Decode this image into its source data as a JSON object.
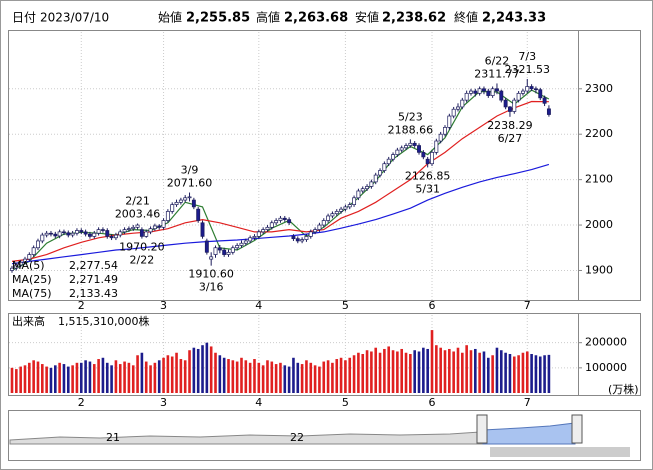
{
  "chart_data": {
    "type": "candlestick",
    "header": {
      "date_label": "日付",
      "date": "2023/07/10",
      "open_label": "始値",
      "open": {
        "value": 2255.85,
        "label": "2,255.85"
      },
      "high_label": "高値",
      "high": {
        "value": 2263.68,
        "label": "2,263.68"
      },
      "low_label": "安値",
      "low": {
        "value": 2238.62,
        "label": "2,238.62"
      },
      "close_label": "終値",
      "close": {
        "value": 2243.33,
        "label": "2,243.33"
      },
      "high_color": "#e00000",
      "low_color": "#008000"
    },
    "up_color": "#ffffff",
    "down_color": "#1c1c8c",
    "candles": [
      [
        1900,
        1910,
        1895,
        1905
      ],
      [
        1905,
        1917,
        1900,
        1912
      ],
      [
        1912,
        1923,
        1907,
        1918
      ],
      [
        1918,
        1930,
        1913,
        1925
      ],
      [
        1925,
        1940,
        1920,
        1935
      ],
      [
        1935,
        1955,
        1930,
        1950
      ],
      [
        1950,
        1970,
        1945,
        1965
      ],
      [
        1965,
        1983,
        1960,
        1978
      ],
      [
        1978,
        1987,
        1973,
        1982
      ],
      [
        1982,
        1987,
        1975,
        1980
      ],
      [
        1980,
        1985,
        1971,
        1976
      ],
      [
        1976,
        1990,
        1971,
        1985
      ],
      [
        1985,
        1990,
        1978,
        1983
      ],
      [
        1983,
        1988,
        1973,
        1978
      ],
      [
        1978,
        1987,
        1973,
        1982
      ],
      [
        1982,
        1993,
        1977,
        1988
      ],
      [
        1988,
        1993,
        1980,
        1985
      ],
      [
        1985,
        1990,
        1975,
        1980
      ],
      [
        1980,
        1985,
        1970,
        1975
      ],
      [
        1975,
        1987,
        1970,
        1982
      ],
      [
        1982,
        1995,
        1977,
        1990
      ],
      [
        1990,
        1995,
        1983,
        1988
      ],
      [
        1988,
        1993,
        1970,
        1975
      ],
      [
        1975,
        1980,
        1967,
        1972
      ],
      [
        1972,
        1983,
        1967,
        1978
      ],
      [
        1978,
        1990,
        1973,
        1985
      ],
      [
        1985,
        1995,
        1980,
        1990
      ],
      [
        1990,
        1997,
        1985,
        1992
      ],
      [
        1992,
        2000,
        1987,
        1995
      ],
      [
        1995,
        2003.46,
        1990,
        2000
      ],
      [
        1990,
        1995,
        1970.2,
        1975
      ],
      [
        1975,
        1990,
        1972,
        1985
      ],
      [
        1985,
        1997,
        1980,
        1992
      ],
      [
        1992,
        2003,
        1987,
        1998
      ],
      [
        1998,
        2002,
        1990,
        1995
      ],
      [
        1995,
        2015,
        1990,
        2010
      ],
      [
        2010,
        2035,
        2005,
        2030
      ],
      [
        2030,
        2050,
        2025,
        2045
      ],
      [
        2045,
        2056,
        2040,
        2050
      ],
      [
        2050,
        2060,
        2045,
        2055
      ],
      [
        2055,
        2066,
        2050,
        2060
      ],
      [
        2060,
        2071.6,
        2052,
        2062
      ],
      [
        2055,
        2060,
        2035,
        2040
      ],
      [
        2035,
        2040,
        2005,
        2010
      ],
      [
        2005,
        2010,
        1970,
        1975
      ],
      [
        1965,
        1970,
        1935,
        1940
      ],
      [
        1925,
        1940,
        1910.6,
        1930
      ],
      [
        1935,
        1955,
        1928,
        1950
      ],
      [
        1950,
        1956,
        1938,
        1945
      ],
      [
        1945,
        1950,
        1930,
        1935
      ],
      [
        1935,
        1946,
        1930,
        1940
      ],
      [
        1940,
        1955,
        1935,
        1950
      ],
      [
        1950,
        1960,
        1945,
        1955
      ],
      [
        1955,
        1966,
        1950,
        1960
      ],
      [
        1960,
        1970,
        1955,
        1965
      ],
      [
        1965,
        1977,
        1960,
        1972
      ],
      [
        1972,
        1980,
        1967,
        1975
      ],
      [
        1975,
        1990,
        1970,
        1985
      ],
      [
        1985,
        1995,
        1980,
        1990
      ],
      [
        1990,
        2000,
        1985,
        1995
      ],
      [
        1995,
        2010,
        1990,
        2005
      ],
      [
        2005,
        2015,
        2000,
        2010
      ],
      [
        2010,
        2020,
        2005,
        2015
      ],
      [
        2015,
        2020,
        2007,
        2012
      ],
      [
        2012,
        2017,
        2000,
        2005
      ],
      [
        1975,
        1980,
        1965,
        1970
      ],
      [
        1970,
        1975,
        1960,
        1965
      ],
      [
        1965,
        1973,
        1960,
        1968
      ],
      [
        1968,
        1980,
        1963,
        1975
      ],
      [
        1975,
        1990,
        1970,
        1985
      ],
      [
        1985,
        1995,
        1980,
        1990
      ],
      [
        1990,
        2005,
        1985,
        2000
      ],
      [
        2000,
        2015,
        1995,
        2010
      ],
      [
        2010,
        2025,
        2005,
        2020
      ],
      [
        2020,
        2030,
        2015,
        2025
      ],
      [
        2025,
        2035,
        2020,
        2030
      ],
      [
        2030,
        2040,
        2025,
        2035
      ],
      [
        2035,
        2045,
        2030,
        2040
      ],
      [
        2040,
        2050,
        2035,
        2045
      ],
      [
        2045,
        2065,
        2040,
        2060
      ],
      [
        2060,
        2080,
        2055,
        2075
      ],
      [
        2075,
        2085,
        2070,
        2080
      ],
      [
        2080,
        2090,
        2075,
        2085
      ],
      [
        2085,
        2100,
        2080,
        2095
      ],
      [
        2095,
        2115,
        2090,
        2110
      ],
      [
        2110,
        2125,
        2105,
        2120
      ],
      [
        2120,
        2140,
        2115,
        2135
      ],
      [
        2135,
        2150,
        2130,
        2145
      ],
      [
        2145,
        2160,
        2140,
        2155
      ],
      [
        2155,
        2170,
        2150,
        2165
      ],
      [
        2165,
        2175,
        2160,
        2170
      ],
      [
        2170,
        2180,
        2165,
        2175
      ],
      [
        2175,
        2188.66,
        2170,
        2180
      ],
      [
        2180,
        2185,
        2170,
        2175
      ],
      [
        2175,
        2180,
        2155,
        2160
      ],
      [
        2160,
        2165,
        2145,
        2150
      ],
      [
        2145,
        2150,
        2126.85,
        2135
      ],
      [
        2135,
        2165,
        2130,
        2160
      ],
      [
        2160,
        2190,
        2155,
        2185
      ],
      [
        2185,
        2205,
        2180,
        2200
      ],
      [
        2200,
        2220,
        2195,
        2215
      ],
      [
        2215,
        2245,
        2210,
        2240
      ],
      [
        2240,
        2260,
        2235,
        2255
      ],
      [
        2255,
        2268,
        2250,
        2260
      ],
      [
        2260,
        2280,
        2255,
        2275
      ],
      [
        2275,
        2296,
        2270,
        2290
      ],
      [
        2290,
        2300,
        2285,
        2295
      ],
      [
        2295,
        2300,
        2283,
        2290
      ],
      [
        2290,
        2305,
        2285,
        2300
      ],
      [
        2300,
        2305,
        2288,
        2295
      ],
      [
        2295,
        2300,
        2280,
        2285
      ],
      [
        2285,
        2305,
        2280,
        2300
      ],
      [
        2300,
        2311.77,
        2288,
        2295
      ],
      [
        2295,
        2298,
        2270,
        2275
      ],
      [
        2275,
        2280,
        2255,
        2260
      ],
      [
        2260,
        2262,
        2238.29,
        2250
      ],
      [
        2250,
        2280,
        2245,
        2275
      ],
      [
        2275,
        2295,
        2270,
        2290
      ],
      [
        2290,
        2300,
        2285,
        2295
      ],
      [
        2295,
        2321.53,
        2290,
        2305
      ],
      [
        2305,
        2310,
        2295,
        2300
      ],
      [
        2300,
        2305,
        2290,
        2298
      ],
      [
        2298,
        2302,
        2275,
        2280
      ],
      [
        2280,
        2285,
        2262,
        2268
      ],
      [
        2255.85,
        2263.68,
        2238.62,
        2243.33
      ]
    ],
    "months": [
      "2",
      "3",
      "4",
      "5",
      "6",
      "7"
    ],
    "month_starts": [
      16,
      35,
      57,
      77,
      97,
      119
    ],
    "ylim": [
      1835,
      2425
    ],
    "yticks": [
      1900,
      2000,
      2100,
      2200,
      2300
    ],
    "grid": true,
    "ma_x": [
      0,
      4,
      8,
      12,
      16,
      20,
      24,
      28,
      32,
      36,
      40,
      44,
      48,
      52,
      56,
      60,
      64,
      68,
      72,
      76,
      80,
      84,
      88,
      92,
      96,
      100,
      104,
      108,
      112,
      116,
      120,
      124
    ],
    "ma_series": [
      {
        "name": "MA(5)",
        "color": "#2e7d32",
        "last": {
          "value": 2277.54,
          "label": "2,277.54"
        },
        "values": [
          1900,
          1920,
          1960,
          1980,
          1984,
          1982,
          1978,
          1990,
          1988,
          2005,
          2050,
          2040,
          1950,
          1945,
          1966,
          1993,
          2010,
          1975,
          1995,
          2028,
          2060,
          2097,
          2145,
          2173,
          2155,
          2192,
          2260,
          2294,
          2293,
          2266,
          2297,
          2277.54
        ]
      },
      {
        "name": "MA(25)",
        "color": "#e02020",
        "last": {
          "value": 2271.49,
          "label": "2,271.49"
        },
        "values": [
          1920,
          1925,
          1935,
          1950,
          1962,
          1972,
          1978,
          1982,
          1985,
          1992,
          2005,
          2012,
          2005,
          1995,
          1985,
          1985,
          1990,
          1985,
          1990,
          2015,
          2030,
          2050,
          2075,
          2100,
          2135,
          2160,
          2190,
          2215,
          2240,
          2258,
          2272,
          2271.49
        ]
      },
      {
        "name": "MA(75)",
        "color": "#1a1adc",
        "last": {
          "value": 2133.43,
          "label": "2,133.43"
        },
        "values": [
          1915,
          1920,
          1925,
          1930,
          1935,
          1940,
          1945,
          1948,
          1952,
          1956,
          1960,
          1963,
          1965,
          1967,
          1970,
          1973,
          1976,
          1980,
          1985,
          1993,
          2002,
          2012,
          2024,
          2037,
          2055,
          2070,
          2083,
          2095,
          2105,
          2113,
          2122,
          2133.43
        ]
      }
    ],
    "annotations": [
      {
        "date": "2/21",
        "kind": "high",
        "value": 2003.46,
        "label": "2003.46"
      },
      {
        "date": "2/22",
        "kind": "low",
        "value": 1970.2,
        "label": "1970.20"
      },
      {
        "date": "3/9",
        "kind": "high",
        "value": 2071.6,
        "label": "2071.60"
      },
      {
        "date": "3/16",
        "kind": "low",
        "value": 1910.6,
        "label": "1910.60"
      },
      {
        "date": "5/23",
        "kind": "high",
        "value": 2188.66,
        "label": "2188.66"
      },
      {
        "date": "5/31",
        "kind": "low",
        "value": 2126.85,
        "label": "2126.85"
      },
      {
        "date": "6/22",
        "kind": "high",
        "value": 2311.77,
        "label": "2311.77"
      },
      {
        "date": "6/27",
        "kind": "low",
        "value": 2238.29,
        "label": "2238.29"
      },
      {
        "date": "7/3",
        "kind": "high",
        "value": 2321.53,
        "label": "2321.53"
      }
    ],
    "volume": {
      "title": "出来高",
      "total": "1,515,310,000株",
      "unit": "(万株)",
      "up_color": "#e02020",
      "down_color": "#1c1c8c",
      "ylim": [
        0,
        310000
      ],
      "yticks": [
        100000,
        200000
      ],
      "values": [
        100000,
        95000,
        105000,
        110000,
        120000,
        130000,
        125000,
        115000,
        105000,
        100000,
        110000,
        120000,
        115000,
        105000,
        110000,
        120000,
        120000,
        130000,
        125000,
        115000,
        135000,
        140000,
        120000,
        110000,
        130000,
        115000,
        125000,
        120000,
        110000,
        150000,
        160000,
        125000,
        110000,
        120000,
        130000,
        140000,
        150000,
        145000,
        160000,
        135000,
        130000,
        170000,
        180000,
        175000,
        190000,
        200000,
        185000,
        160000,
        150000,
        140000,
        135000,
        130000,
        125000,
        140000,
        130000,
        120000,
        135000,
        120000,
        110000,
        130000,
        125000,
        115000,
        120000,
        110000,
        105000,
        140000,
        120000,
        115000,
        130000,
        120000,
        110000,
        105000,
        125000,
        130000,
        120000,
        135000,
        140000,
        130000,
        140000,
        150000,
        160000,
        155000,
        170000,
        165000,
        180000,
        160000,
        175000,
        185000,
        170000,
        165000,
        175000,
        160000,
        155000,
        170000,
        165000,
        180000,
        175000,
        250000,
        190000,
        180000,
        170000,
        175000,
        165000,
        180000,
        160000,
        190000,
        170000,
        175000,
        160000,
        165000,
        140000,
        150000,
        180000,
        170000,
        160000,
        155000,
        145000,
        150000,
        160000,
        165000,
        155000,
        150000,
        145000,
        150000,
        151531
      ]
    },
    "navigator": {
      "labels": [
        "21",
        "22"
      ]
    }
  }
}
